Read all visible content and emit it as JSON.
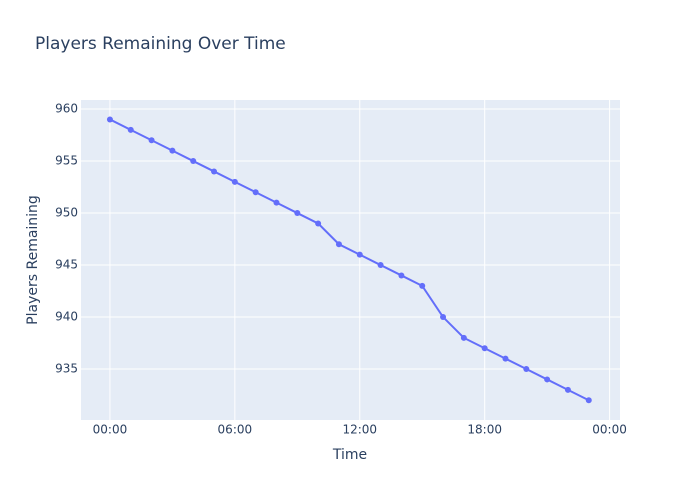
{
  "chart_data": {
    "type": "line",
    "title": "Players Remaining Over Time",
    "x_label": "Time",
    "y_label": "Players Remaining",
    "x": [
      0,
      1,
      2,
      3,
      4,
      5,
      6,
      7,
      8,
      9,
      10,
      11,
      12,
      13,
      14,
      15,
      16,
      17,
      18,
      19,
      20,
      21,
      22,
      23
    ],
    "series": [
      {
        "name": "Players Remaining",
        "color": "#636efa",
        "values": [
          959,
          958,
          957,
          956,
          955,
          954,
          953,
          952,
          951,
          950,
          949,
          947,
          946,
          945,
          944,
          943,
          940,
          938,
          937,
          936,
          935,
          934,
          933,
          932
        ]
      }
    ],
    "xlim": [
      -1.39,
      24.5
    ],
    "xticks": [
      {
        "value": 0,
        "label": "00:00"
      },
      {
        "value": 6,
        "label": "06:00"
      },
      {
        "value": 12,
        "label": "12:00"
      },
      {
        "value": 18,
        "label": "18:00"
      },
      {
        "value": 24,
        "label": "00:00"
      }
    ],
    "ylim": [
      930.1,
      960.87
    ],
    "yticks": [
      935,
      940,
      945,
      950,
      955,
      960
    ],
    "grid": true
  }
}
